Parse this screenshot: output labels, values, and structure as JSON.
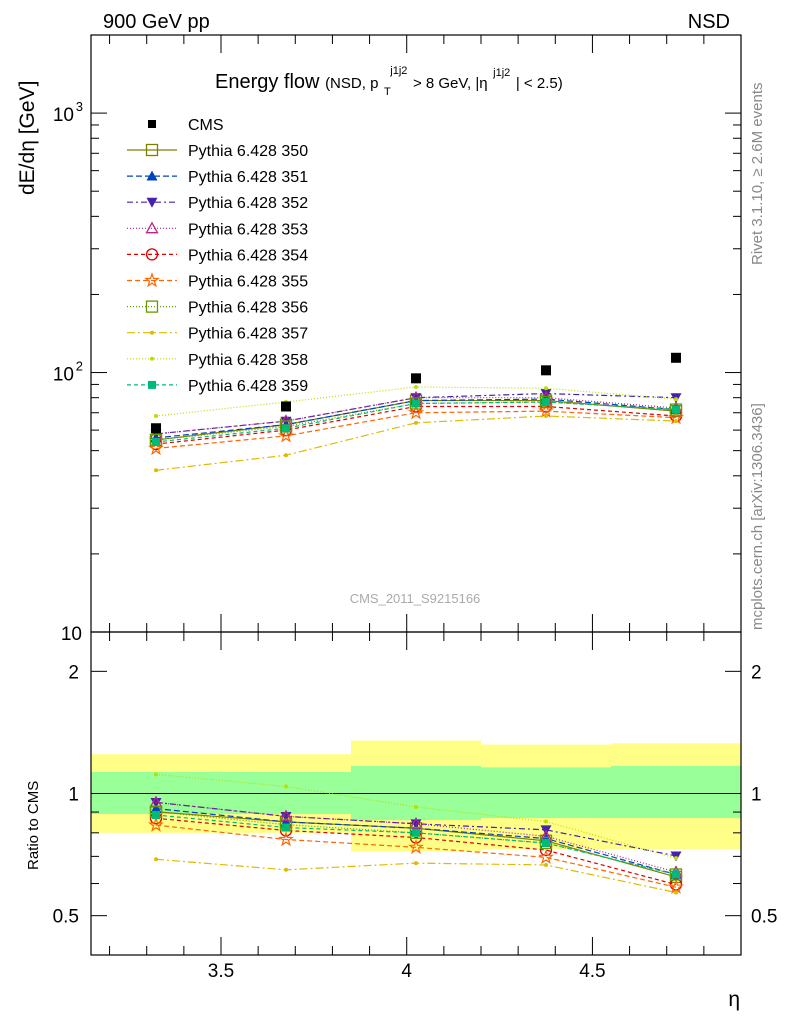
{
  "header": {
    "left": "900 GeV pp",
    "right": "NSD"
  },
  "side_texts": {
    "rivet": "Rivet 3.1.10, ≥ 2.6M events",
    "mcplots": "mcplots.cern.ch [arXiv:1306.3436]"
  },
  "title": {
    "main": "Energy flow",
    "paren_open": "(NSD, p",
    "sup1": "j1j2",
    "sub1": "T",
    "mid": " > 8 GeV, |η",
    "sup2": "j1j2",
    "end": "| < 2.5)"
  },
  "watermark": "CMS_2011_S9215166",
  "colors": {
    "band_outer": "#ffff88",
    "band_inner": "#99ff99",
    "cms": "#000000"
  },
  "chart_data": [
    {
      "type": "line",
      "ylabel": "dE/dη [GeV]",
      "yscale": "log",
      "ylim": [
        10,
        2000
      ],
      "xlim": [
        3.15,
        4.9
      ],
      "ytick_labels": [
        "10",
        "10",
        "10"
      ],
      "ytick_exps": [
        "",
        "2",
        "3"
      ],
      "x": [
        3.325,
        3.675,
        4.025,
        4.375,
        4.725
      ],
      "x_bins": [
        [
          3.15,
          3.5
        ],
        [
          3.5,
          3.85
        ],
        [
          3.85,
          4.2
        ],
        [
          4.2,
          4.55
        ],
        [
          4.55,
          4.9
        ]
      ],
      "cms": {
        "name": "CMS",
        "values": [
          61,
          74,
          95,
          102,
          114
        ]
      },
      "series": [
        {
          "name": "Pythia 6.428 350",
          "color": "#808000",
          "dash": "",
          "marker": "square-open",
          "values": [
            55,
            63,
            78,
            78,
            71
          ]
        },
        {
          "name": "Pythia 6.428 351",
          "color": "#0044bb",
          "dash": "6,3",
          "marker": "triangle-up",
          "values": [
            56,
            63,
            78,
            79,
            72
          ]
        },
        {
          "name": "Pythia 6.428 352",
          "color": "#4422aa",
          "dash": "6,3,2,3",
          "marker": "triangle-down",
          "values": [
            58,
            65,
            80,
            83,
            80
          ]
        },
        {
          "name": "Pythia 6.428 353",
          "color": "#bb2288",
          "dash": "1,2",
          "marker": "triangle-open",
          "values": [
            58,
            65,
            80,
            80,
            73
          ]
        },
        {
          "name": "Pythia 6.428 354",
          "color": "#dd0000",
          "dash": "4,3",
          "marker": "circle-open",
          "values": [
            53,
            60,
            74,
            74,
            68
          ]
        },
        {
          "name": "Pythia 6.428 355",
          "color": "#ff6600",
          "dash": "5,3",
          "marker": "star-open",
          "values": [
            51,
            57,
            70,
            71,
            67
          ]
        },
        {
          "name": "Pythia 6.428 356",
          "color": "#669900",
          "dash": "1,2",
          "marker": "square-open",
          "values": [
            55,
            62,
            76,
            77,
            72
          ]
        },
        {
          "name": "Pythia 6.428 357",
          "color": "#ddbb00",
          "dash": "8,3,2,3",
          "marker": "dot",
          "values": [
            42,
            48,
            64,
            68,
            65
          ]
        },
        {
          "name": "Pythia 6.428 358",
          "color": "#bbdd00",
          "dash": "1,2",
          "marker": "dot",
          "values": [
            68,
            77,
            88,
            87,
            79
          ]
        },
        {
          "name": "Pythia 6.428 359",
          "color": "#00bb77",
          "dash": "4,3",
          "marker": "square",
          "values": [
            54,
            61,
            76,
            77,
            72
          ]
        }
      ]
    },
    {
      "type": "line",
      "xlabel": "η",
      "ylabel": "Ratio to CMS",
      "ylim": [
        0.4,
        2.5
      ],
      "xlim": [
        3.15,
        4.9
      ],
      "xtick_labels": [
        "3.5",
        "4",
        "4.5"
      ],
      "ytick_labels": [
        "0.5",
        "1",
        "2"
      ],
      "bands": {
        "outer": [
          [
            0.8,
            1.25
          ],
          [
            0.8,
            1.25
          ],
          [
            0.72,
            1.35
          ],
          [
            0.73,
            1.32
          ],
          [
            0.73,
            1.33
          ]
        ],
        "inner": [
          [
            0.89,
            1.13
          ],
          [
            0.89,
            1.13
          ],
          [
            0.86,
            1.17
          ],
          [
            0.87,
            1.16
          ],
          [
            0.87,
            1.17
          ]
        ]
      }
    }
  ]
}
